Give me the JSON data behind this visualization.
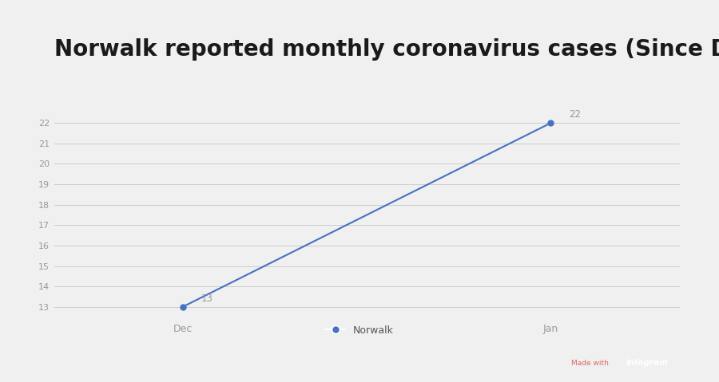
{
  "title": "Norwalk reported monthly coronavirus cases (Since Dec.)",
  "x_labels": [
    "Dec",
    "Jan"
  ],
  "x_values": [
    0,
    1
  ],
  "y_values": [
    13,
    22
  ],
  "point_labels": [
    "13",
    "22"
  ],
  "y_min": 13,
  "y_max": 22,
  "y_ticks": [
    13,
    14,
    15,
    16,
    17,
    18,
    19,
    20,
    21,
    22
  ],
  "line_color": "#4472C4",
  "marker_color": "#4472C4",
  "background_color": "#f0f0f0",
  "plot_bg_color": "#f0f0f0",
  "title_color": "#1a1a1a",
  "title_fontsize": 20,
  "legend_label": "Norwalk",
  "footer_color": "#cc1010",
  "grid_color": "#cccccc",
  "tick_color": "#999999"
}
